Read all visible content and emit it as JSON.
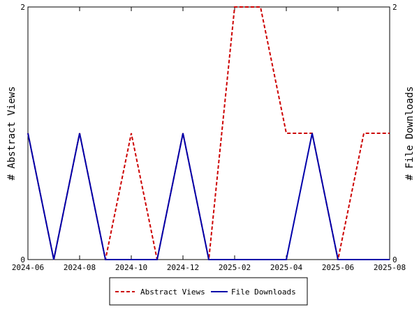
{
  "chart_data": {
    "type": "line",
    "x": [
      "2024-06",
      "2024-07",
      "2024-08",
      "2024-09",
      "2024-10",
      "2024-11",
      "2024-12",
      "2025-01",
      "2025-02",
      "2025-03",
      "2025-04",
      "2025-05",
      "2025-06",
      "2025-07",
      "2025-08"
    ],
    "x_tick_labels": [
      "2024-06",
      "2024-08",
      "2024-10",
      "2024-12",
      "2025-02",
      "2025-04",
      "2025-06",
      "2025-08"
    ],
    "ylabel_left": "# Abstract Views",
    "ylabel_right": "# File Downloads",
    "ylim": [
      0,
      2
    ],
    "y_ticks": [
      "0",
      "2"
    ],
    "y_ticks_right": [
      "0",
      "2"
    ],
    "grid": false,
    "legend_position": "bottom-center",
    "series": [
      {
        "name": "Abstract Views",
        "color": "#cc0000",
        "style": "dashed",
        "axis": "left",
        "values": [
          1,
          0,
          1,
          0,
          1,
          0,
          1,
          0,
          2,
          2,
          1,
          1,
          0,
          1,
          1
        ]
      },
      {
        "name": "File Downloads",
        "color": "#0000aa",
        "style": "solid",
        "axis": "right",
        "values": [
          1,
          0,
          1,
          0,
          0,
          0,
          1,
          0,
          0,
          0,
          0,
          1,
          0,
          0,
          0
        ]
      }
    ]
  }
}
